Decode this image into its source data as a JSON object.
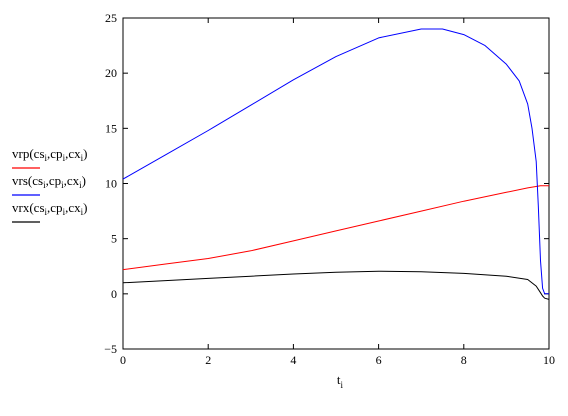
{
  "chart_data": {
    "type": "line",
    "title": "",
    "xlabel": "t_i",
    "ylabel": "",
    "xlim": [
      0,
      10
    ],
    "ylim": [
      -5,
      25
    ],
    "x_ticks": [
      0,
      2,
      4,
      6,
      8,
      10
    ],
    "y_ticks": [
      -5,
      0,
      5,
      10,
      15,
      20,
      25
    ],
    "grid": false,
    "legend_position": "left",
    "series": [
      {
        "name": "vrp(cs_i, cp_i, cx_i)",
        "color": "#ff0000",
        "x": [
          0,
          1,
          2,
          3,
          4,
          5,
          6,
          7,
          8,
          9,
          9.5,
          9.8,
          9.9,
          10
        ],
        "y": [
          2.2,
          2.7,
          3.2,
          3.9,
          4.8,
          5.7,
          6.6,
          7.5,
          8.4,
          9.2,
          9.6,
          9.8,
          9.8,
          9.8
        ]
      },
      {
        "name": "vrs(cs_i, cp_i, cx_i)",
        "color": "#0000ff",
        "x": [
          0,
          1,
          2,
          3,
          4,
          5,
          6,
          7,
          7.5,
          8,
          8.5,
          9,
          9.3,
          9.5,
          9.6,
          9.7,
          9.75,
          9.8,
          9.85,
          9.9,
          10
        ],
        "y": [
          10.4,
          12.6,
          14.8,
          17.1,
          19.4,
          21.5,
          23.2,
          24.0,
          24.0,
          23.5,
          22.5,
          20.8,
          19.3,
          17.2,
          15.0,
          12.0,
          8.0,
          3.0,
          0.5,
          0.0,
          0.0
        ]
      },
      {
        "name": "vrx(cs_i, cp_i, cx_i)",
        "color": "#000000",
        "x": [
          0,
          1,
          2,
          3,
          4,
          5,
          6,
          7,
          8,
          9,
          9.5,
          9.7,
          9.8,
          9.85,
          9.9,
          10
        ],
        "y": [
          1.0,
          1.2,
          1.4,
          1.6,
          1.8,
          1.95,
          2.05,
          2.0,
          1.85,
          1.6,
          1.3,
          0.7,
          0.1,
          -0.2,
          -0.4,
          -0.5
        ]
      }
    ]
  }
}
